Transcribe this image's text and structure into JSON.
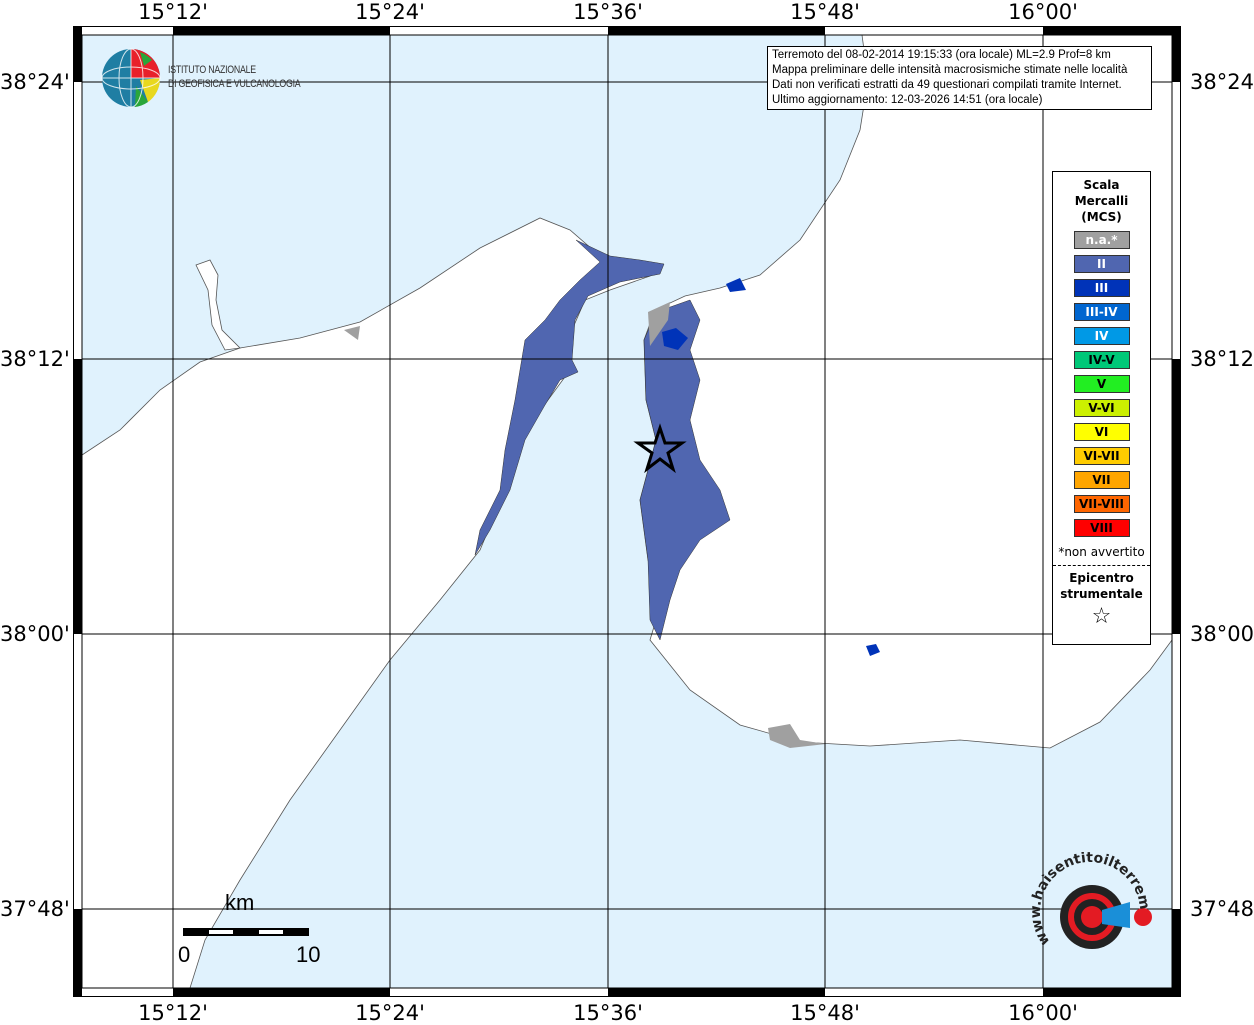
{
  "map": {
    "lon_ticks": [
      "15°12'",
      "15°24'",
      "15°36'",
      "15°48'",
      "16°00'"
    ],
    "lat_ticks": [
      "38°24'",
      "38°12'",
      "38°00'",
      "37°48'"
    ],
    "colors": {
      "sea": "#e0f2fd",
      "land": "#ffffff",
      "intensity_II": "#5066b0",
      "intensity_III": "#0033b8",
      "na": "#a0a0a0"
    },
    "epicenter_icon": "star-icon"
  },
  "info": {
    "lines": [
      "Terremoto del 08-02-2014 19:15:33 (ora locale) ML=2.9 Prof=8 km",
      "Mappa preliminare delle intensità macrosismiche stimate nelle località",
      "Dati non verificati estratti da 49 questionari compilati tramite Internet.",
      "Ultimo aggiornamento: 12-03-2026 14:51 (ora locale)"
    ]
  },
  "legend": {
    "title_lines": [
      "Scala",
      "Mercalli",
      "(MCS)"
    ],
    "items": [
      {
        "label": "n.a.*",
        "color": "#a0a0a0",
        "text": "#ffffff"
      },
      {
        "label": "II",
        "color": "#5066b0",
        "text": "#ffffff"
      },
      {
        "label": "III",
        "color": "#0033b8",
        "text": "#ffffff"
      },
      {
        "label": "III-IV",
        "color": "#0066d0",
        "text": "#ffffff"
      },
      {
        "label": "IV",
        "color": "#0099e6",
        "text": "#ffffff"
      },
      {
        "label": "IV-V",
        "color": "#00c878",
        "text": "#000000"
      },
      {
        "label": "V",
        "color": "#22ee22",
        "text": "#000000"
      },
      {
        "label": "V-VI",
        "color": "#ccf000",
        "text": "#000000"
      },
      {
        "label": "VI",
        "color": "#ffff00",
        "text": "#000000"
      },
      {
        "label": "VI-VII",
        "color": "#ffcc00",
        "text": "#000000"
      },
      {
        "label": "VII",
        "color": "#ffa500",
        "text": "#000000"
      },
      {
        "label": "VII-VIII",
        "color": "#ff6600",
        "text": "#000000"
      },
      {
        "label": "VIII",
        "color": "#ff0000",
        "text": "#000000"
      }
    ],
    "note": "*non avvertito",
    "epicenter_lines": [
      "Epicentro",
      "strumentale"
    ]
  },
  "logo_ingv": {
    "lines": [
      "ISTITUTO NAZIONALE",
      "DI GEOFISICA E VULCANOLOGIA"
    ]
  },
  "logo_hsit": {
    "text": "www.haisentitoilterremoto.it"
  },
  "scalebar": {
    "unit": "km",
    "min": "0",
    "max": "10"
  }
}
